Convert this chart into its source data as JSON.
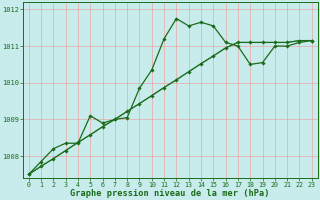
{
  "xlabel": "Graphe pression niveau de la mer (hPa)",
  "background_color": "#c8ecec",
  "grid_color": "#e8a8a8",
  "line_color": "#1a6b1a",
  "ylim": [
    1007.4,
    1012.2
  ],
  "xlim": [
    -0.5,
    23.5
  ],
  "yticks": [
    1008,
    1009,
    1010,
    1011,
    1012
  ],
  "xticks": [
    0,
    1,
    2,
    3,
    4,
    5,
    6,
    7,
    8,
    9,
    10,
    11,
    12,
    13,
    14,
    15,
    16,
    17,
    18,
    19,
    20,
    21,
    22,
    23
  ],
  "s1_x": [
    0,
    1,
    2,
    3,
    4,
    5,
    6,
    7,
    8,
    9,
    10,
    11,
    12,
    13,
    14,
    15,
    16,
    17,
    18,
    19,
    20,
    21,
    22,
    23
  ],
  "s1_y": [
    1007.5,
    1007.85,
    1008.2,
    1008.35,
    1008.35,
    1009.1,
    1008.9,
    1009.0,
    1009.05,
    1009.85,
    1010.35,
    1011.2,
    1011.75,
    1011.55,
    1011.65,
    1011.55,
    1011.1,
    1011.0,
    1010.5,
    1010.55,
    1011.0,
    1011.0,
    1011.1,
    1011.15
  ],
  "s2_x": [
    0,
    1,
    2,
    3,
    4,
    5,
    6,
    7,
    8,
    9,
    10,
    11,
    12,
    13,
    14,
    15,
    16,
    17,
    18,
    19,
    20,
    21,
    22,
    23
  ],
  "s2_y": [
    1007.5,
    1007.72,
    1007.93,
    1008.15,
    1008.37,
    1008.58,
    1008.8,
    1009.0,
    1009.22,
    1009.43,
    1009.65,
    1009.87,
    1010.08,
    1010.3,
    1010.52,
    1010.73,
    1010.95,
    1011.1,
    1011.1,
    1011.1,
    1011.1,
    1011.1,
    1011.15,
    1011.15
  ],
  "s3_x": [
    0,
    1,
    2,
    3,
    4,
    5,
    6,
    7,
    8,
    9,
    10,
    11,
    12,
    13,
    14,
    15,
    16,
    17,
    18,
    19,
    20,
    21,
    22,
    23
  ],
  "s3_y": [
    1007.5,
    1007.72,
    1007.93,
    1008.15,
    1008.37,
    1008.58,
    1008.8,
    1009.0,
    1009.22,
    1009.43,
    1009.65,
    1009.87,
    1010.08,
    1010.3,
    1010.52,
    1010.73,
    1010.95,
    1011.1,
    1011.1,
    1011.1,
    1011.1,
    1011.1,
    1011.15,
    1011.15
  ]
}
